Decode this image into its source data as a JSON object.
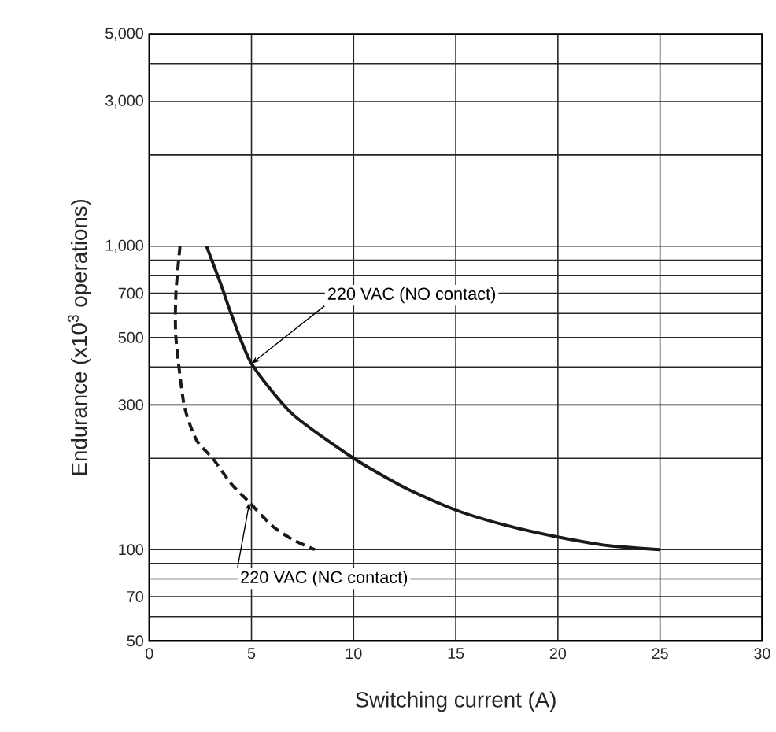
{
  "chart_data": {
    "type": "line",
    "xlabel": "Switching current (A)",
    "ylabel": "Endurance (x10$^{3}$ operations)",
    "log": "y",
    "grid": true,
    "marker": "none",
    "xlim": [
      0,
      30
    ],
    "xticks": [
      0,
      5,
      10,
      15,
      20,
      25,
      30
    ],
    "ylim": [
      50,
      5000
    ],
    "yticks": [
      50,
      {
        "value": 60,
        "label": null
      },
      70,
      {
        "value": 80,
        "label": null
      },
      {
        "value": 90,
        "label": null
      },
      100,
      {
        "value": 200,
        "label": null
      },
      300,
      {
        "value": 400,
        "label": null
      },
      500,
      {
        "value": 600,
        "label": null
      },
      700,
      {
        "value": 800,
        "label": null
      },
      {
        "value": 900,
        "label": null
      },
      {
        "value": 1000,
        "label": "1,000"
      },
      {
        "value": 2000,
        "label": null
      },
      {
        "value": 3000,
        "label": "3,000"
      },
      {
        "value": 4000,
        "label": null
      },
      {
        "value": 5000,
        "label": "5,000"
      }
    ],
    "series": [
      {
        "color": "#1a1a1a",
        "line_style": "solid",
        "x": [
          2.8,
          3.5,
          4,
          5,
          7,
          10,
          12.5,
          15,
          17.5,
          20,
          22.5,
          25
        ],
        "values": [
          1000,
          750,
          600,
          410,
          280,
          200,
          160,
          135,
          120,
          110,
          103,
          100
        ]
      },
      {
        "color": "#1a1a1a",
        "line_style": "dashed",
        "x": [
          1.5,
          1.3,
          1.3,
          1.7,
          2.3,
          3.1,
          4,
          4.9,
          6,
          7,
          8.1
        ],
        "values": [
          1000,
          700,
          500,
          300,
          230,
          200,
          165,
          143,
          120,
          108,
          100
        ]
      }
    ],
    "annotations": [
      {
        "text": "220 VAC (NO contact)",
        "x": 5,
        "y": 410
      },
      {
        "text": "220 VAC (NC contact)",
        "x": 4.9,
        "y": 143
      }
    ]
  }
}
